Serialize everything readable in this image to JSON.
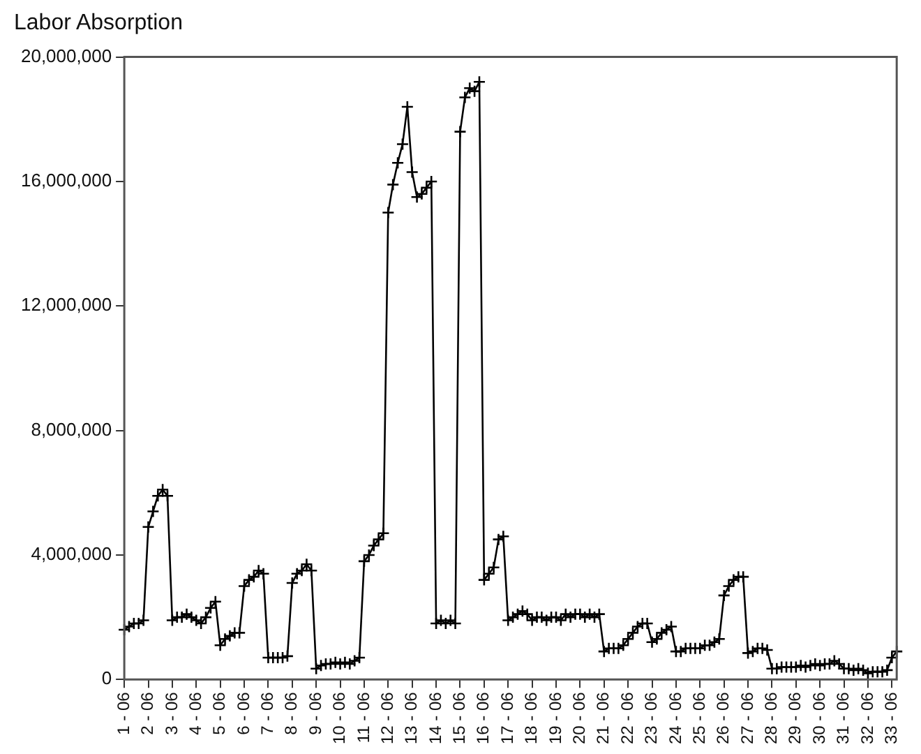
{
  "chart_data": {
    "type": "line",
    "title": "Labor Absorption",
    "categories": [
      "1 - 06",
      null,
      null,
      null,
      null,
      "2 - 06",
      null,
      null,
      null,
      null,
      "3 - 06",
      null,
      null,
      null,
      null,
      "4 - 06",
      null,
      null,
      null,
      null,
      "5 - 06",
      null,
      null,
      null,
      null,
      "6 - 06",
      null,
      null,
      null,
      null,
      "7 - 06",
      null,
      null,
      null,
      null,
      "8 - 06",
      null,
      null,
      null,
      null,
      "9 - 06",
      null,
      null,
      null,
      null,
      "10 - 06",
      null,
      null,
      null,
      null,
      "11 - 06",
      null,
      null,
      null,
      null,
      "12 - 06",
      null,
      null,
      null,
      null,
      "13 - 06",
      null,
      null,
      null,
      null,
      "14 - 06",
      null,
      null,
      null,
      null,
      "15 - 06",
      null,
      null,
      null,
      null,
      "16 - 06",
      null,
      null,
      null,
      null,
      "17 - 06",
      null,
      null,
      null,
      null,
      "18 - 06",
      null,
      null,
      null,
      null,
      "19 - 06",
      null,
      null,
      null,
      null,
      "20 - 06",
      null,
      null,
      null,
      null,
      "21 - 06",
      null,
      null,
      null,
      null,
      "22 - 06",
      null,
      null,
      null,
      null,
      "23 - 06",
      null,
      null,
      null,
      null,
      "24 - 06",
      null,
      null,
      null,
      null,
      "25 - 06",
      null,
      null,
      null,
      null,
      "26 - 06",
      null,
      null,
      null,
      null,
      "27 - 06",
      null,
      null,
      null,
      null,
      "28 - 06",
      null,
      null,
      null,
      null,
      "29 - 06",
      null,
      null,
      null,
      null,
      "30 - 06",
      null,
      null,
      null,
      null,
      "31 - 06",
      null,
      null,
      null,
      null,
      "32 - 06",
      null,
      null,
      null,
      null,
      "33 - 06",
      null
    ],
    "series": [
      {
        "color": "#000000",
        "values": [
          1600000,
          1700000,
          1800000,
          1800000,
          1900000,
          4900000,
          5400000,
          5900000,
          6100000,
          5900000,
          1900000,
          2000000,
          2000000,
          2100000,
          2000000,
          1900000,
          1800000,
          2000000,
          2300000,
          2500000,
          1100000,
          1300000,
          1400000,
          1500000,
          1500000,
          3000000,
          3200000,
          3300000,
          3500000,
          3400000,
          700000,
          700000,
          700000,
          700000,
          750000,
          3100000,
          3400000,
          3500000,
          3700000,
          3500000,
          350000,
          450000,
          500000,
          500000,
          550000,
          500000,
          550000,
          500000,
          600000,
          700000,
          3800000,
          4000000,
          4300000,
          4500000,
          4700000,
          15000000,
          15900000,
          16600000,
          17200000,
          18400000,
          16300000,
          15500000,
          15600000,
          15800000,
          16000000,
          1800000,
          1900000,
          1800000,
          1900000,
          1800000,
          17600000,
          18700000,
          19000000,
          18900000,
          19200000,
          3200000,
          3400000,
          3600000,
          4500000,
          4600000,
          1900000,
          2000000,
          2100000,
          2200000,
          2100000,
          1900000,
          2000000,
          2000000,
          1900000,
          2000000,
          2000000,
          1900000,
          2100000,
          2000000,
          2100000,
          2100000,
          2000000,
          2100000,
          2000000,
          2100000,
          900000,
          1000000,
          1000000,
          1000000,
          1100000,
          1300000,
          1500000,
          1700000,
          1800000,
          1800000,
          1200000,
          1300000,
          1500000,
          1600000,
          1700000,
          900000,
          900000,
          1000000,
          1000000,
          1000000,
          1000000,
          1100000,
          1100000,
          1200000,
          1300000,
          2700000,
          3000000,
          3200000,
          3300000,
          3300000,
          850000,
          900000,
          1000000,
          1000000,
          950000,
          350000,
          350000,
          400000,
          400000,
          400000,
          400000,
          450000,
          400000,
          450000,
          500000,
          450000,
          500000,
          500000,
          600000,
          500000,
          350000,
          350000,
          300000,
          350000,
          300000,
          200000,
          250000,
          250000,
          250000,
          300000,
          700000,
          900000
        ]
      }
    ],
    "ylim": [
      0,
      20000000
    ],
    "yticks": [
      {
        "value": 0,
        "label": "0"
      },
      {
        "value": 4000000,
        "label": "4,000,000"
      },
      {
        "value": 8000000,
        "label": "8,000,000"
      },
      {
        "value": 12000000,
        "label": "12,000,000"
      },
      {
        "value": 16000000,
        "label": "16,000,000"
      },
      {
        "value": 20000000,
        "label": "20,000,000"
      }
    ],
    "grid": false,
    "legend": false,
    "marker": "cross",
    "line_style": "solid"
  }
}
